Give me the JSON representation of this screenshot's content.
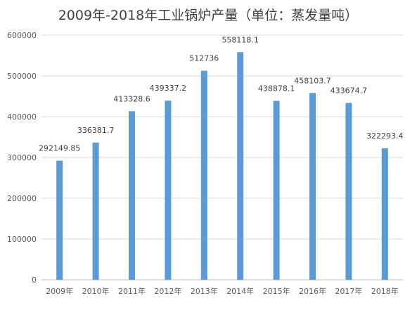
{
  "chart_data": {
    "type": "bar",
    "title": "2009年-2018年工业锅炉产量（单位：蒸发量吨）",
    "categories": [
      "2009年",
      "2010年",
      "2011年",
      "2012年",
      "2013年",
      "2014年",
      "2015年",
      "2016年",
      "2017年",
      "2018年"
    ],
    "values": [
      292149.85,
      336381.7,
      413328.6,
      439337.2,
      512736,
      558118.1,
      438878.1,
      458103.7,
      433674.7,
      322293.4
    ],
    "data_labels": [
      "292149.85",
      "336381.7",
      "413328.6",
      "439337.2",
      "512736",
      "558118.1",
      "438878.1",
      "458103.7",
      "433674.7",
      "322293.4"
    ],
    "ylim": [
      0,
      600000
    ],
    "yticks": [
      0,
      100000,
      200000,
      300000,
      400000,
      500000,
      600000
    ],
    "ytick_labels": [
      "0",
      "100000",
      "200000",
      "300000",
      "400000",
      "500000",
      "600000"
    ],
    "xlabel": "",
    "ylabel": "",
    "grid": true,
    "legend": "none",
    "bar_color": "#5b9bd5"
  }
}
